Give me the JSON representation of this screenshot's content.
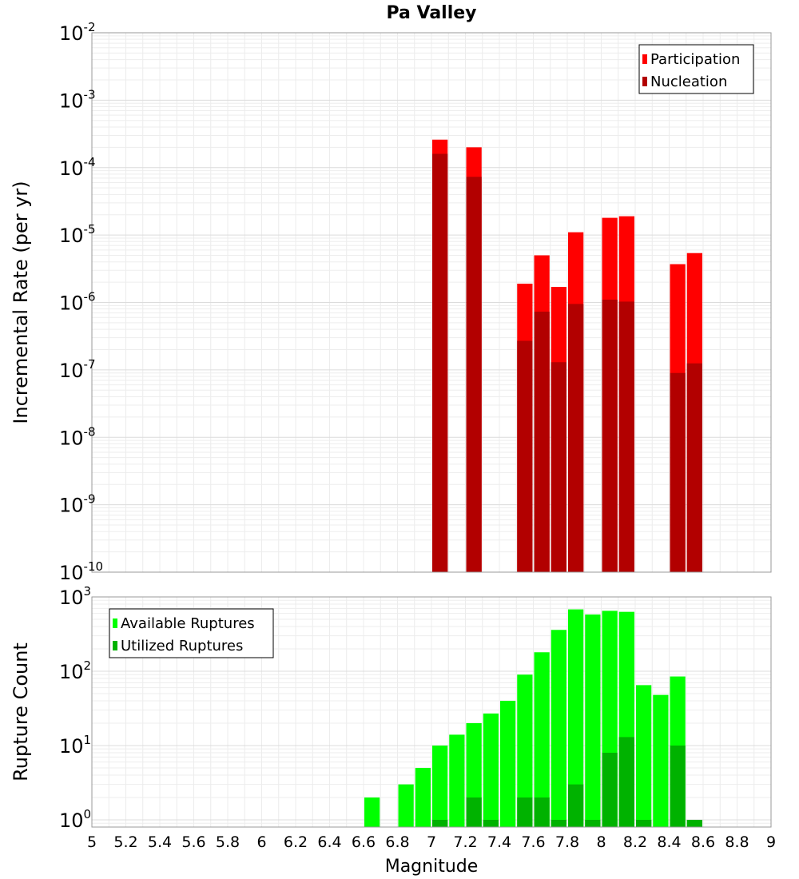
{
  "chart_data": [
    {
      "type": "bar",
      "title": "Pa Valley",
      "ylabel": "Incremental Rate (per yr)",
      "yscale": "log",
      "ylim": [
        1e-10,
        0.01
      ],
      "xlim": [
        5,
        9
      ],
      "bin_width": 0.1,
      "legend_position": "top-right",
      "series": [
        {
          "name": "Participation",
          "color": "#ff0000",
          "x": [
            7.05,
            7.25,
            7.55,
            7.65,
            7.75,
            7.85,
            8.05,
            8.15,
            8.45,
            8.55
          ],
          "values": [
            0.00026,
            0.0002,
            1.9e-06,
            5e-06,
            1.7e-06,
            1.1e-05,
            1.8e-05,
            1.9e-05,
            3.7e-06,
            5.4e-06
          ]
        },
        {
          "name": "Nucleation",
          "color": "#b20000",
          "x": [
            7.05,
            7.25,
            7.55,
            7.65,
            7.75,
            7.85,
            8.05,
            8.15,
            8.45,
            8.55
          ],
          "values": [
            0.00016,
            7.3e-05,
            2.7e-07,
            7.3e-07,
            1.3e-07,
            9.5e-07,
            1.1e-06,
            1.03e-06,
            9e-08,
            1.25e-07
          ]
        }
      ]
    },
    {
      "type": "bar",
      "xlabel": "Magnitude",
      "ylabel": "Rupture Count",
      "yscale": "log",
      "ylim": [
        0.8,
        1000
      ],
      "xlim": [
        5,
        9
      ],
      "bin_width": 0.1,
      "legend_position": "top-left",
      "xticks": [
        "5",
        "5.2",
        "5.4",
        "5.6",
        "5.8",
        "6",
        "6.2",
        "6.4",
        "6.6",
        "6.8",
        "7",
        "7.2",
        "7.4",
        "7.6",
        "7.8",
        "8",
        "8.2",
        "8.4",
        "8.6",
        "8.8",
        "9"
      ],
      "series": [
        {
          "name": "Available Ruptures",
          "color": "#00ff00",
          "x": [
            6.65,
            6.85,
            6.95,
            7.05,
            7.15,
            7.25,
            7.35,
            7.45,
            7.55,
            7.65,
            7.75,
            7.85,
            7.95,
            8.05,
            8.15,
            8.25,
            8.35,
            8.45,
            8.55
          ],
          "values": [
            2,
            3,
            5,
            10,
            14,
            20,
            27,
            40,
            90,
            180,
            360,
            680,
            580,
            650,
            630,
            65,
            48,
            85,
            1
          ]
        },
        {
          "name": "Utilized Ruptures",
          "color": "#00b200",
          "x": [
            7.05,
            7.25,
            7.35,
            7.55,
            7.65,
            7.75,
            7.85,
            7.95,
            8.05,
            8.15,
            8.25,
            8.45,
            8.55
          ],
          "values": [
            1,
            2,
            1,
            2,
            2,
            1,
            3,
            1,
            8,
            13,
            1,
            10,
            1
          ]
        }
      ]
    }
  ]
}
